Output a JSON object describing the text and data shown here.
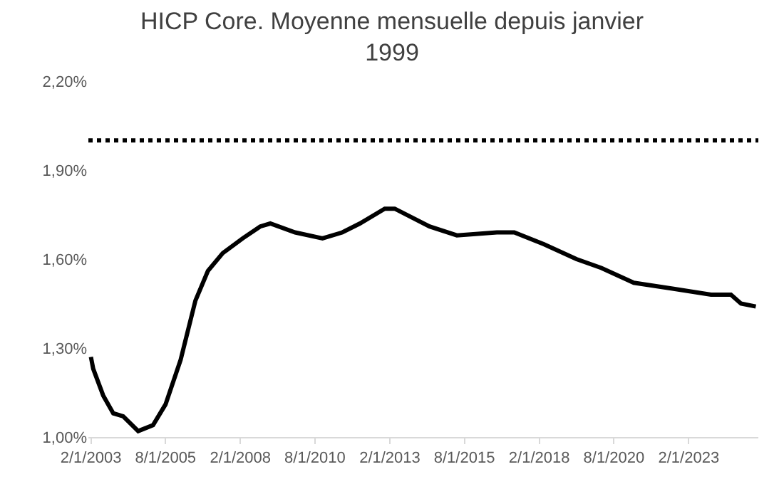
{
  "chart_data": {
    "type": "line",
    "title": "HICP Core. Moyenne mensuelle depuis janvier\n1999",
    "x": [
      "2003-02",
      "2003-03",
      "2003-07",
      "2003-11",
      "2004-03",
      "2004-09",
      "2005-03",
      "2005-08",
      "2006-02",
      "2006-08",
      "2007-01",
      "2007-07",
      "2008-03",
      "2008-10",
      "2009-02",
      "2009-12",
      "2010-11",
      "2011-07",
      "2012-02",
      "2012-12",
      "2013-04",
      "2014-06",
      "2015-05",
      "2016-09",
      "2017-04",
      "2018-04",
      "2019-05",
      "2020-03",
      "2021-04",
      "2022-08",
      "2023-11",
      "2024-07",
      "2024-11",
      "2025-05"
    ],
    "series": [
      {
        "color": "#000000",
        "values": [
          1.27,
          1.23,
          1.14,
          1.08,
          1.07,
          1.02,
          1.04,
          1.11,
          1.26,
          1.46,
          1.56,
          1.62,
          1.67,
          1.71,
          1.72,
          1.69,
          1.67,
          1.69,
          1.72,
          1.77,
          1.77,
          1.71,
          1.68,
          1.69,
          1.69,
          1.65,
          1.6,
          1.57,
          1.52,
          1.5,
          1.48,
          1.48,
          1.45,
          1.44
        ]
      }
    ],
    "xlim": [
      "2003-01",
      "2025-06"
    ],
    "xticks": [
      {
        "value": "2003-02-01",
        "label": "2/1/2003"
      },
      {
        "value": "2005-08-01",
        "label": "8/1/2005"
      },
      {
        "value": "2008-02-01",
        "label": "2/1/2008"
      },
      {
        "value": "2010-08-01",
        "label": "8/1/2010"
      },
      {
        "value": "2013-02-01",
        "label": "2/1/2013"
      },
      {
        "value": "2015-08-01",
        "label": "8/1/2015"
      },
      {
        "value": "2018-02-01",
        "label": "2/1/2018"
      },
      {
        "value": "2020-08-01",
        "label": "8/1/2020"
      },
      {
        "value": "2023-02-01",
        "label": "2/1/2023"
      }
    ],
    "ylim": [
      1.0,
      2.2
    ],
    "yticks": [
      {
        "value": 1.0,
        "label": "1,00%"
      },
      {
        "value": 1.3,
        "label": "1,30%"
      },
      {
        "value": 1.6,
        "label": "1,60%"
      },
      {
        "value": 1.9,
        "label": "1,90%"
      },
      {
        "value": 2.2,
        "label": "2,20%"
      }
    ],
    "ref_lines": [
      {
        "axis": "y",
        "value": 2.0,
        "color": "#000000",
        "line_style": "dotted"
      }
    ],
    "grid": false,
    "marker": "none",
    "line_style": "solid"
  }
}
